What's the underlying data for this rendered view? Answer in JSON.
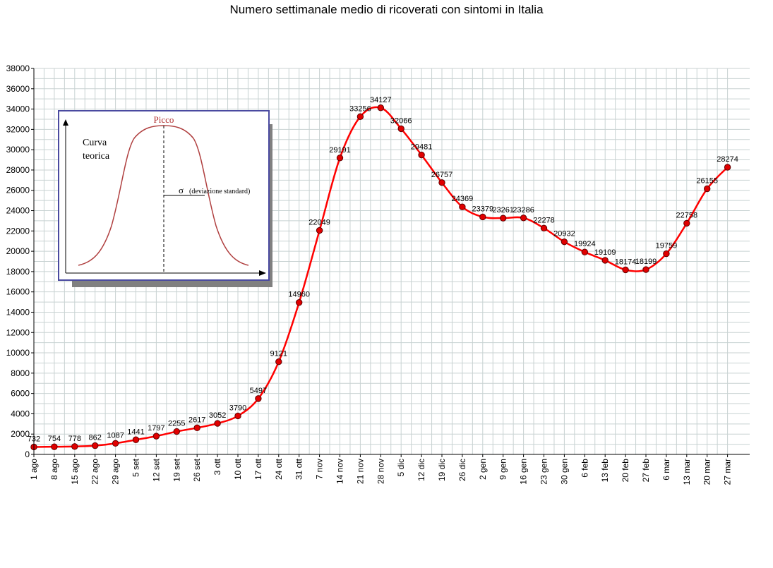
{
  "chart_data": {
    "type": "line",
    "title": "Numero settimanale medio di ricoverati con sintomi in Italia",
    "xlabel": "",
    "ylabel": "",
    "ylim": [
      0,
      38000
    ],
    "y_ticks": [
      0,
      2000,
      4000,
      6000,
      8000,
      10000,
      12000,
      14000,
      16000,
      18000,
      20000,
      22000,
      24000,
      26000,
      28000,
      30000,
      32000,
      34000,
      36000,
      38000
    ],
    "grid": true,
    "legend": "none",
    "categories": [
      "1 ago",
      "8 ago",
      "15 ago",
      "22 ago",
      "29 ago",
      "5 set",
      "12 set",
      "19 set",
      "26 set",
      "3 ott",
      "10 ott",
      "17 ott",
      "24 ott",
      "31 ott",
      "7 nov",
      "14 nov",
      "21 nov",
      "28 nov",
      "5 dic",
      "12 dic",
      "19 dic",
      "26 dic",
      "2 gen",
      "9 gen",
      "16 gen",
      "23 gen",
      "30 gen",
      "6 feb",
      "13 feb",
      "20 feb",
      "27 feb",
      "6 mar",
      "13 mar",
      "20 mar",
      "27 mar"
    ],
    "values": [
      732,
      754,
      778,
      862,
      1087,
      1441,
      1797,
      2255,
      2617,
      3052,
      3790,
      5497,
      9121,
      14960,
      22049,
      29191,
      33256,
      34127,
      32066,
      29481,
      26757,
      24369,
      23379,
      23261,
      23286,
      22278,
      20932,
      19924,
      19109,
      18174,
      18199,
      19759,
      22758,
      26155,
      28274
    ],
    "data_labels": [
      "732",
      "754",
      "778",
      "862",
      "1087",
      "1441",
      "1797",
      "2255",
      "2617",
      "3052",
      "3790",
      "5497",
      "9121",
      "14960",
      "22049",
      "29191",
      "33256",
      "34127",
      "32066",
      "29481",
      "26757",
      "24369",
      "23379",
      "23261",
      "23286",
      "22278",
      "20932",
      "19924",
      "19109",
      "18174",
      "18199",
      "19759",
      "22758",
      "26155",
      "28274"
    ],
    "line_color": "#ff0000",
    "marker_color": "#e00000"
  },
  "inset": {
    "peak_label": "Picco",
    "curve_label_line1": "Curva",
    "curve_label_line2": "teorica",
    "sigma_symbol": "σ",
    "sigma_label": "(deviazione standard)",
    "border_color": "#4a4aa0",
    "peak_color": "#b03030",
    "curve_color": "#b04040"
  }
}
